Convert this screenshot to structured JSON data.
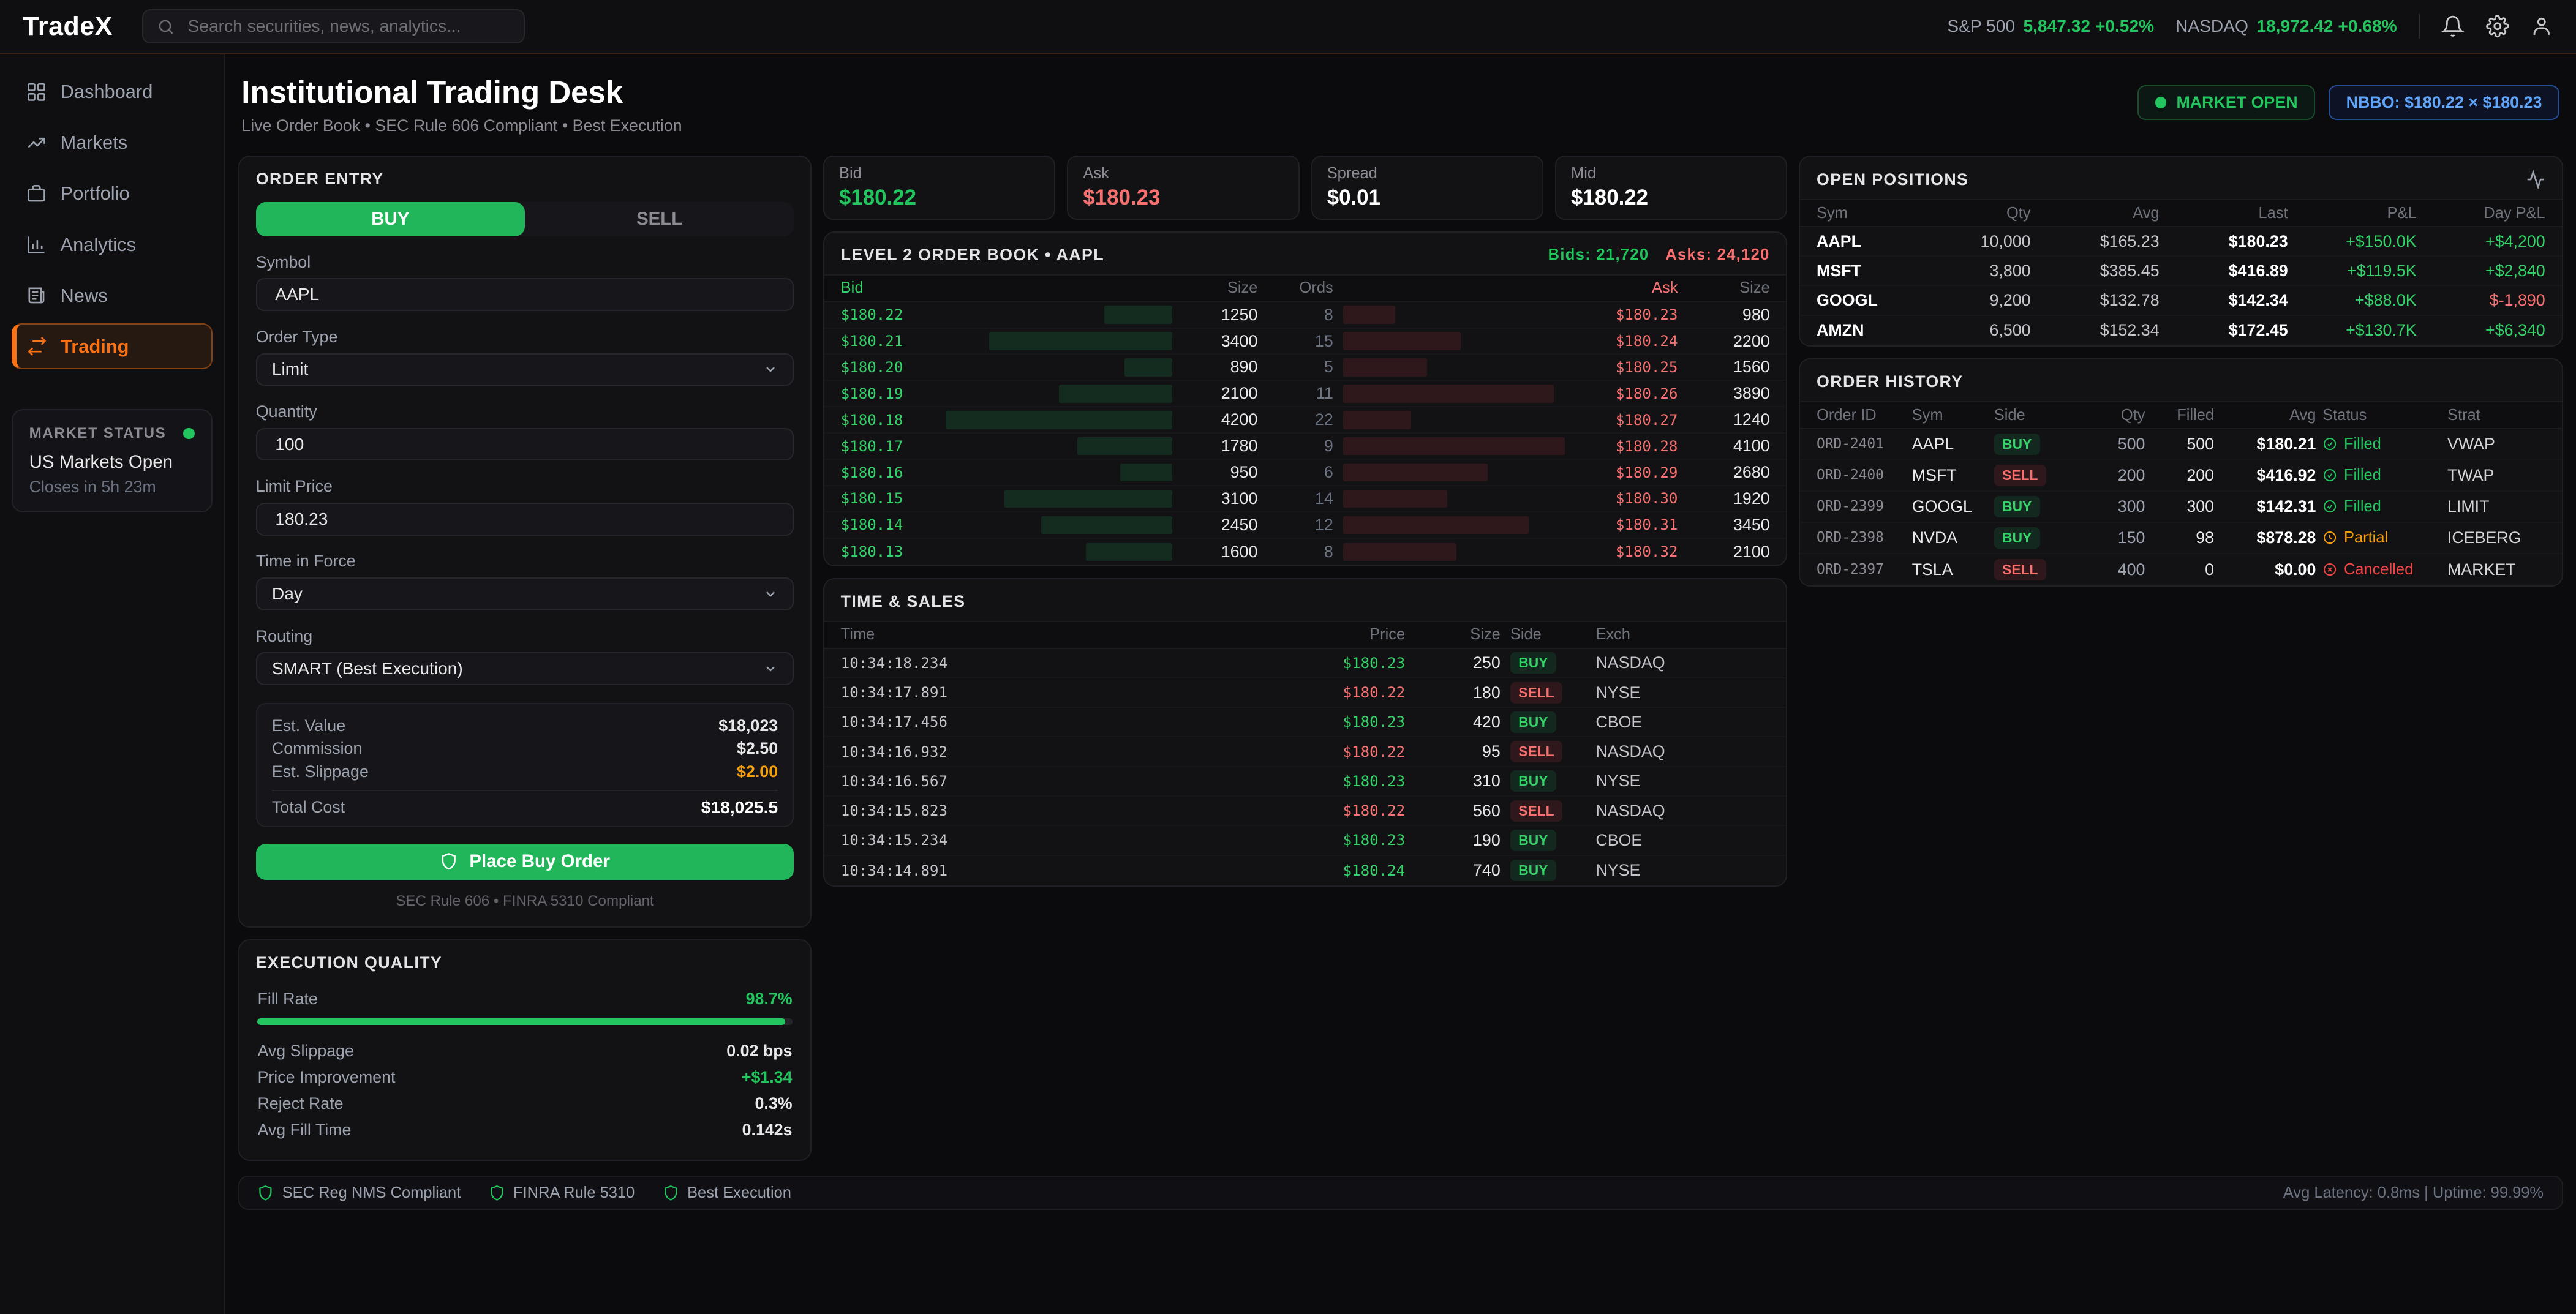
{
  "colors": {
    "green": "#22c55e",
    "red": "#ef4444",
    "orange": "#f97316",
    "amber": "#f59e0b",
    "blue": "#60a5fa"
  },
  "topbar": {
    "logo": "TradeX",
    "search_placeholder": "Search securities, news, analytics...",
    "tickers": [
      {
        "label": "S&P 500",
        "value": "5,847.32 +0.52%"
      },
      {
        "label": "NASDAQ",
        "value": "18,972.42 +0.68%"
      }
    ],
    "action_icons": [
      "bell",
      "settings",
      "user"
    ]
  },
  "sidebar": {
    "items": [
      {
        "label": "Dashboard",
        "icon": "dashboard",
        "active": false
      },
      {
        "label": "Markets",
        "icon": "markets",
        "active": false
      },
      {
        "label": "Portfolio",
        "icon": "portfolio",
        "active": false
      },
      {
        "label": "Analytics",
        "icon": "analytics",
        "active": false
      },
      {
        "label": "News",
        "icon": "news",
        "active": false
      },
      {
        "label": "Trading",
        "icon": "trading",
        "active": true
      }
    ],
    "market_status": {
      "title": "MARKET STATUS",
      "status": "US Markets Open",
      "closes": "Closes in 5h 23m"
    }
  },
  "header": {
    "title": "Institutional Trading Desk",
    "subtitle": "Live Order Book • SEC Rule 606 Compliant • Best Execution",
    "market_badge": "MARKET OPEN",
    "nbbo_badge": "NBBO: $180.22 × $180.23"
  },
  "order_entry": {
    "title": "ORDER ENTRY",
    "tabs": {
      "buy": "BUY",
      "sell": "SELL",
      "active": "BUY"
    },
    "fields": {
      "symbol": {
        "label": "Symbol",
        "value": "AAPL"
      },
      "order_type": {
        "label": "Order Type",
        "value": "Limit"
      },
      "quantity": {
        "label": "Quantity",
        "value": "100"
      },
      "limit_price": {
        "label": "Limit Price",
        "value": "180.23"
      },
      "time_in_force": {
        "label": "Time in Force",
        "value": "Day"
      },
      "routing": {
        "label": "Routing",
        "value": "SMART (Best Execution)"
      }
    },
    "summary": {
      "rows": [
        {
          "label": "Est. Value",
          "value": "$18,023",
          "tone": "normal"
        },
        {
          "label": "Commission",
          "value": "$2.50",
          "tone": "normal"
        },
        {
          "label": "Est. Slippage",
          "value": "$2.00",
          "tone": "orange"
        }
      ],
      "total": {
        "label": "Total Cost",
        "value": "$18,025.5"
      }
    },
    "submit_label": "Place Buy Order",
    "compliance": "SEC Rule 606 • FINRA 5310 Compliant"
  },
  "quotes": {
    "cards": [
      {
        "label": "Bid",
        "value": "$180.22",
        "tone": "g"
      },
      {
        "label": "Ask",
        "value": "$180.23",
        "tone": "r"
      },
      {
        "label": "Spread",
        "value": "$0.01",
        "tone": "w"
      },
      {
        "label": "Mid",
        "value": "$180.22",
        "tone": "w"
      }
    ]
  },
  "level2": {
    "title": "LEVEL 2 ORDER BOOK • AAPL",
    "bids_total": "Bids: 21,720",
    "asks_total": "Asks: 24,120",
    "columns": [
      "Bid",
      "Size",
      "Ords",
      "Ask",
      "Size"
    ],
    "max_size": 4200,
    "rows": [
      {
        "bid": "$180.22",
        "bid_size": 1250,
        "orders": 8,
        "ask": "$180.23",
        "ask_size": 980
      },
      {
        "bid": "$180.21",
        "bid_size": 3400,
        "orders": 15,
        "ask": "$180.24",
        "ask_size": 2200
      },
      {
        "bid": "$180.20",
        "bid_size": 890,
        "orders": 5,
        "ask": "$180.25",
        "ask_size": 1560
      },
      {
        "bid": "$180.19",
        "bid_size": 2100,
        "orders": 11,
        "ask": "$180.26",
        "ask_size": 3890
      },
      {
        "bid": "$180.18",
        "bid_size": 4200,
        "orders": 22,
        "ask": "$180.27",
        "ask_size": 1240
      },
      {
        "bid": "$180.17",
        "bid_size": 1780,
        "orders": 9,
        "ask": "$180.28",
        "ask_size": 4100
      },
      {
        "bid": "$180.16",
        "bid_size": 950,
        "orders": 6,
        "ask": "$180.29",
        "ask_size": 2680
      },
      {
        "bid": "$180.15",
        "bid_size": 3100,
        "orders": 14,
        "ask": "$180.30",
        "ask_size": 1920
      },
      {
        "bid": "$180.14",
        "bid_size": 2450,
        "orders": 12,
        "ask": "$180.31",
        "ask_size": 3450
      },
      {
        "bid": "$180.13",
        "bid_size": 1600,
        "orders": 8,
        "ask": "$180.32",
        "ask_size": 2100
      }
    ]
  },
  "time_sales": {
    "title": "TIME & SALES",
    "columns": [
      "Time",
      "Price",
      "Size",
      "Side",
      "Exch"
    ],
    "rows": [
      {
        "time": "10:34:18.234",
        "price": "$180.23",
        "size": "250",
        "side": "BUY",
        "exch": "NASDAQ"
      },
      {
        "time": "10:34:17.891",
        "price": "$180.22",
        "size": "180",
        "side": "SELL",
        "exch": "NYSE"
      },
      {
        "time": "10:34:17.456",
        "price": "$180.23",
        "size": "420",
        "side": "BUY",
        "exch": "CBOE"
      },
      {
        "time": "10:34:16.932",
        "price": "$180.22",
        "size": "95",
        "side": "SELL",
        "exch": "NASDAQ"
      },
      {
        "time": "10:34:16.567",
        "price": "$180.23",
        "size": "310",
        "side": "BUY",
        "exch": "NYSE"
      },
      {
        "time": "10:34:15.823",
        "price": "$180.22",
        "size": "560",
        "side": "SELL",
        "exch": "NASDAQ"
      },
      {
        "time": "10:34:15.234",
        "price": "$180.23",
        "size": "190",
        "side": "BUY",
        "exch": "CBOE"
      },
      {
        "time": "10:34:14.891",
        "price": "$180.24",
        "size": "740",
        "side": "BUY",
        "exch": "NYSE"
      }
    ]
  },
  "positions": {
    "title": "OPEN POSITIONS",
    "columns": [
      "Sym",
      "Qty",
      "Avg",
      "Last",
      "P&L",
      "Day P&L"
    ],
    "rows": [
      {
        "sym": "AAPL",
        "qty": "10,000",
        "avg": "$165.23",
        "last": "$180.23",
        "pnl": "+$150.0K",
        "day": "+$4,200",
        "day_negative": false
      },
      {
        "sym": "MSFT",
        "qty": "3,800",
        "avg": "$385.45",
        "last": "$416.89",
        "pnl": "+$119.5K",
        "day": "+$2,840",
        "day_negative": false
      },
      {
        "sym": "GOOGL",
        "qty": "9,200",
        "avg": "$132.78",
        "last": "$142.34",
        "pnl": "+$88.0K",
        "day": "$-1,890",
        "day_negative": true
      },
      {
        "sym": "AMZN",
        "qty": "6,500",
        "avg": "$152.34",
        "last": "$172.45",
        "pnl": "+$130.7K",
        "day": "+$6,340",
        "day_negative": false
      }
    ]
  },
  "history": {
    "title": "ORDER HISTORY",
    "columns": [
      "Order ID",
      "Sym",
      "Side",
      "Qty",
      "Filled",
      "Avg",
      "Status",
      "Strat"
    ],
    "rows": [
      {
        "id": "ORD-2401",
        "sym": "AAPL",
        "side": "BUY",
        "qty": "500",
        "filled": "500",
        "avg": "$180.21",
        "status": "Filled",
        "status_type": "filled",
        "strat": "VWAP"
      },
      {
        "id": "ORD-2400",
        "sym": "MSFT",
        "side": "SELL",
        "qty": "200",
        "filled": "200",
        "avg": "$416.92",
        "status": "Filled",
        "status_type": "filled",
        "strat": "TWAP"
      },
      {
        "id": "ORD-2399",
        "sym": "GOOGL",
        "side": "BUY",
        "qty": "300",
        "filled": "300",
        "avg": "$142.31",
        "status": "Filled",
        "status_type": "filled",
        "strat": "LIMIT"
      },
      {
        "id": "ORD-2398",
        "sym": "NVDA",
        "side": "BUY",
        "qty": "150",
        "filled": "98",
        "avg": "$878.28",
        "status": "Partial",
        "status_type": "partial",
        "strat": "ICEBERG"
      },
      {
        "id": "ORD-2397",
        "sym": "TSLA",
        "side": "SELL",
        "qty": "400",
        "filled": "0",
        "avg": "$0.00",
        "status": "Cancelled",
        "status_type": "cancelled",
        "strat": "MARKET"
      }
    ]
  },
  "execution_quality": {
    "title": "EXECUTION QUALITY",
    "fill_rate": {
      "label": "Fill Rate",
      "value": "98.7%",
      "pct": 98.7
    },
    "metrics": [
      {
        "label": "Avg Slippage",
        "value": "0.02 bps",
        "positive": false
      },
      {
        "label": "Price Improvement",
        "value": "+$1.34",
        "positive": true
      },
      {
        "label": "Reject Rate",
        "value": "0.3%",
        "positive": false
      },
      {
        "label": "Avg Fill Time",
        "value": "0.142s",
        "positive": false
      }
    ]
  },
  "footer": {
    "items": [
      "SEC Reg NMS Compliant",
      "FINRA Rule 5310",
      "Best Execution"
    ],
    "stats": "Avg Latency: 0.8ms | Uptime: 99.99%"
  }
}
